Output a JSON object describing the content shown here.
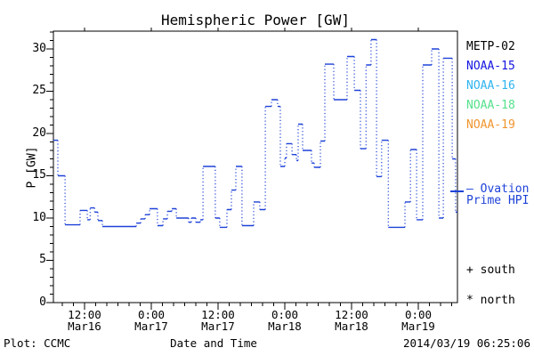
{
  "title": "Hemispheric Power [GW]",
  "y_axis": {
    "label": "P [GW]",
    "major_ticks": [
      0,
      5,
      10,
      15,
      20,
      25,
      30
    ],
    "minor_step": 1,
    "minor_max": 32
  },
  "x_axis": {
    "label": "Date and Time",
    "major_ticks": [
      {
        "t": 12,
        "time": "12:00",
        "date": "Mar16"
      },
      {
        "t": 24,
        "time": "0:00",
        "date": "Mar17"
      },
      {
        "t": 36,
        "time": "12:00",
        "date": "Mar17"
      },
      {
        "t": 48,
        "time": "0:00",
        "date": "Mar18"
      },
      {
        "t": 60,
        "time": "12:00",
        "date": "Mar18"
      },
      {
        "t": 72,
        "time": "0:00",
        "date": "Mar19"
      }
    ],
    "minor_start": 8,
    "minor_step": 2,
    "minor_end": 78
  },
  "legend": {
    "satellites": [
      {
        "label": "METP-02",
        "color": "#000000"
      },
      {
        "label": "NOAA-15",
        "color": "#1414e0"
      },
      {
        "label": "NOAA-16",
        "color": "#2fb4f0"
      },
      {
        "label": "NOAA-18",
        "color": "#55e18c"
      },
      {
        "label": "NOAA-19",
        "color": "#f0942e"
      }
    ],
    "ovation": {
      "lines": [
        "— Ovation",
        "Prime HPI"
      ],
      "color": "#1e42d8"
    },
    "south": {
      "symbol": "+",
      "text": "south"
    },
    "north": {
      "symbol": "*",
      "text": "north"
    }
  },
  "footer": {
    "plot_credit": "Plot: CCMC",
    "timestamp": "2014/03/19 06:25:06"
  },
  "chart_data": {
    "type": "line",
    "style": "step-post",
    "title": "Hemispheric Power [GW]",
    "xlabel": "Date and Time",
    "ylabel": "P [GW]",
    "x_unit": "hours since 2014-03-16 00:00 UT",
    "xlim": [
      6.4,
      79.04
    ],
    "ylim": [
      0,
      32.1
    ],
    "grid": false,
    "legend_position": "right-outside",
    "series": [
      {
        "name": "Ovation Prime HPI",
        "color": "#1e42d8",
        "t_end": 79.0,
        "steps": [
          [
            6.4,
            19.2
          ],
          [
            7.2,
            15.0
          ],
          [
            8.5,
            9.2
          ],
          [
            11.2,
            10.9
          ],
          [
            12.5,
            9.8
          ],
          [
            13.0,
            11.2
          ],
          [
            13.8,
            10.7
          ],
          [
            14.4,
            9.7
          ],
          [
            15.2,
            9.0
          ],
          [
            21.3,
            9.4
          ],
          [
            22.1,
            9.9
          ],
          [
            22.9,
            10.4
          ],
          [
            23.7,
            11.1
          ],
          [
            25.1,
            9.1
          ],
          [
            26.1,
            9.9
          ],
          [
            26.9,
            10.8
          ],
          [
            27.7,
            11.1
          ],
          [
            28.5,
            10.0
          ],
          [
            30.7,
            9.5
          ],
          [
            31.2,
            10.0
          ],
          [
            32.0,
            9.5
          ],
          [
            32.8,
            9.8
          ],
          [
            33.3,
            16.1
          ],
          [
            35.5,
            10.0
          ],
          [
            36.3,
            8.9
          ],
          [
            37.6,
            11.0
          ],
          [
            38.4,
            13.3
          ],
          [
            39.2,
            16.1
          ],
          [
            40.3,
            9.1
          ],
          [
            42.4,
            11.9
          ],
          [
            43.5,
            11.0
          ],
          [
            44.5,
            23.2
          ],
          [
            45.6,
            24.0
          ],
          [
            46.7,
            23.2
          ],
          [
            47.2,
            16.1
          ],
          [
            48.0,
            17.1
          ],
          [
            48.3,
            18.8
          ],
          [
            49.3,
            17.5
          ],
          [
            50.1,
            16.8
          ],
          [
            50.4,
            21.1
          ],
          [
            51.2,
            18.0
          ],
          [
            52.8,
            16.5
          ],
          [
            53.3,
            16.0
          ],
          [
            54.4,
            19.1
          ],
          [
            55.2,
            28.2
          ],
          [
            56.8,
            24.0
          ],
          [
            59.2,
            29.1
          ],
          [
            60.5,
            25.1
          ],
          [
            61.6,
            18.2
          ],
          [
            62.6,
            28.1
          ],
          [
            63.5,
            31.1
          ],
          [
            64.5,
            14.9
          ],
          [
            65.4,
            19.2
          ],
          [
            66.6,
            8.9
          ],
          [
            69.6,
            11.9
          ],
          [
            70.6,
            18.1
          ],
          [
            71.7,
            9.8
          ],
          [
            72.8,
            28.1
          ],
          [
            74.4,
            30.0
          ],
          [
            75.7,
            10.0
          ],
          [
            76.5,
            28.9
          ],
          [
            78.1,
            17.0
          ],
          [
            78.7,
            10.7
          ]
        ]
      }
    ]
  }
}
